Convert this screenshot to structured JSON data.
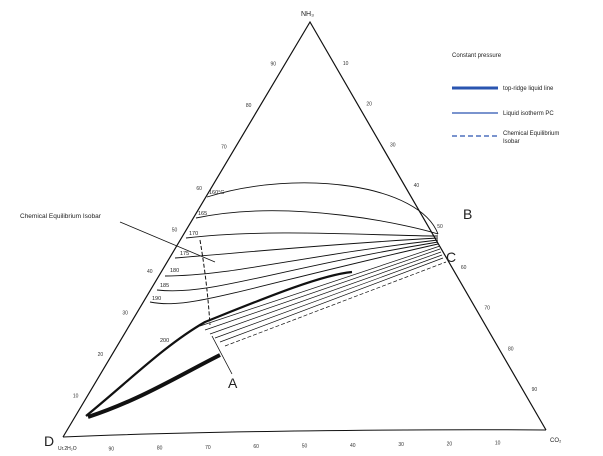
{
  "diagram": {
    "vertex_top": "NH₃",
    "vertex_right": "CO₂",
    "vertex_left": "Ur.2H₂O",
    "points": {
      "A": "A",
      "B": "B",
      "C": "C",
      "D": "D"
    },
    "annotation": "Chemical Equilibrium Isobar",
    "left_ticks": [
      "90",
      "80",
      "70",
      "60",
      "50",
      "40",
      "30",
      "20",
      "10"
    ],
    "right_ticks": [
      "10",
      "20",
      "30",
      "40",
      "50",
      "60",
      "70",
      "80",
      "90"
    ],
    "bottom_ticks": [
      "90",
      "80",
      "70",
      "60",
      "50",
      "40",
      "30",
      "20",
      "10"
    ],
    "isotherm_labels": [
      "160°C",
      "165",
      "170",
      "175",
      "180",
      "185",
      "190",
      "200"
    ]
  },
  "legend": {
    "title": "Constant pressure",
    "items": [
      {
        "label": "top-ridge liquid line",
        "style": "thick"
      },
      {
        "label": "Liquid isotherm PC",
        "style": "thin"
      },
      {
        "label": "Chemical Equilibrium Isobar",
        "style": "dashed"
      }
    ]
  }
}
